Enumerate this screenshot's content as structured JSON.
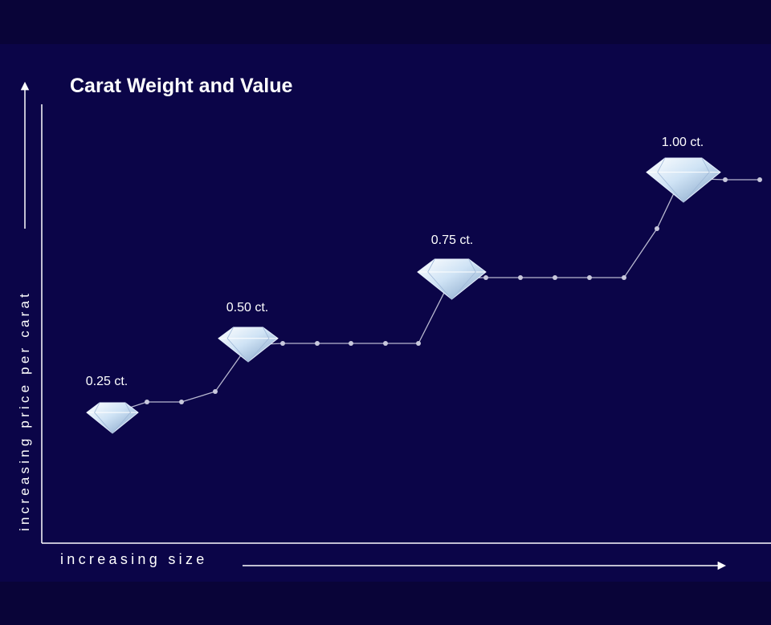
{
  "title": "Carat Weight and Value",
  "y_axis_label": "increasing price per carat",
  "x_axis_label": "increasing size",
  "diamonds": [
    {
      "label": "0.25 ct."
    },
    {
      "label": "0.50 ct."
    },
    {
      "label": "0.75 ct."
    },
    {
      "label": "1.00 ct."
    }
  ]
}
